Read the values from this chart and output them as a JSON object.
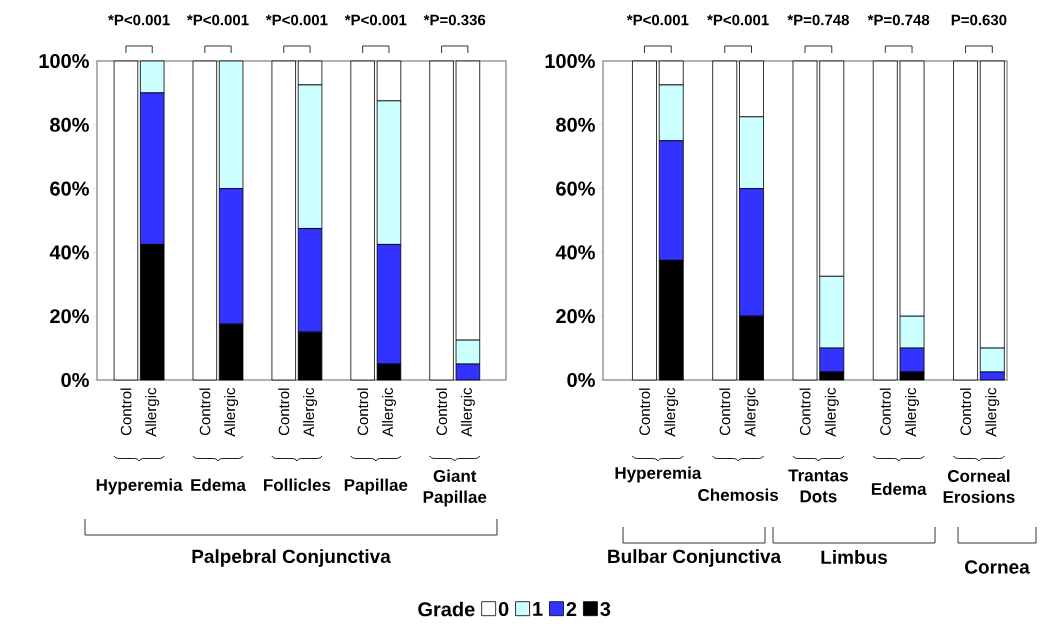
{
  "chart_data": [
    {
      "type": "bar",
      "stacked": true,
      "legend": "bottom",
      "legend_title": "Grade",
      "categories": [
        "Control",
        "Allergic",
        "Control",
        "Allergic",
        "Control",
        "Allergic",
        "Control",
        "Allergic",
        "Control",
        "Allergic"
      ],
      "ylim": [
        0,
        100
      ],
      "yticks": [
        {
          "value": 0,
          "label": "0%"
        },
        {
          "value": 20,
          "label": "20%"
        },
        {
          "value": 40,
          "label": "40%"
        },
        {
          "value": 60,
          "label": "60%"
        },
        {
          "value": 80,
          "label": "80%"
        },
        {
          "value": 100,
          "label": "100%"
        }
      ],
      "series": [
        {
          "name": "3",
          "color": "#000000",
          "values": [
            0,
            42.5,
            0,
            17.5,
            0,
            15,
            0,
            5,
            0,
            0
          ]
        },
        {
          "name": "2",
          "color": "#3333ff",
          "values": [
            0,
            47.5,
            0,
            42.5,
            0,
            32.5,
            0,
            37.5,
            0,
            5
          ]
        },
        {
          "name": "1",
          "color": "#ccffff",
          "values": [
            0,
            10,
            0,
            40,
            0,
            45,
            0,
            45,
            0,
            7.5
          ]
        },
        {
          "name": "0",
          "color": "#ffffff",
          "values": [
            100,
            0,
            100,
            0,
            100,
            7.5,
            100,
            12.5,
            100,
            87.5
          ]
        }
      ],
      "annotations": [
        "*P<0.001",
        "*P<0.001",
        "*P<0.001",
        "*P<0.001",
        "*P=0.336",
        "Hyperemia",
        "Edema",
        "Follicles",
        "Papillae",
        "Giant Papillae",
        "Palpebral Conjunctiva"
      ]
    },
    {
      "type": "bar",
      "stacked": true,
      "categories": [
        "Control",
        "Allergic",
        "Control",
        "Allergic",
        "Control",
        "Allergic",
        "Control",
        "Allergic",
        "Control",
        "Allergic"
      ],
      "ylim": [
        0,
        100
      ],
      "yticks": [
        {
          "value": 0,
          "label": "0%"
        },
        {
          "value": 20,
          "label": "20%"
        },
        {
          "value": 40,
          "label": "40%"
        },
        {
          "value": 60,
          "label": "60%"
        },
        {
          "value": 80,
          "label": "80%"
        },
        {
          "value": 100,
          "label": "100%"
        }
      ],
      "series": [
        {
          "color": "#000000",
          "values": [
            0,
            37.5,
            0,
            20,
            0,
            2.5,
            0,
            2.5,
            0,
            0
          ]
        },
        {
          "color": "#3333ff",
          "values": [
            0,
            37.5,
            0,
            40,
            0,
            7.5,
            0,
            7.5,
            0,
            2.5
          ]
        },
        {
          "color": "#ccffff",
          "values": [
            0,
            17.5,
            0,
            22.5,
            0,
            22.5,
            0,
            10,
            0,
            7.5
          ]
        },
        {
          "color": "#ffffff",
          "values": [
            100,
            7.5,
            100,
            17.5,
            100,
            67.5,
            100,
            80,
            100,
            90
          ]
        }
      ],
      "annotations": [
        "*P<0.001",
        "*P<0.001",
        "*P=0.748",
        "*P=0.748",
        "P=0.630",
        "Hyperemia",
        "Chemosis",
        "Trantas Dots",
        "Edema",
        "Corneal Erosions",
        "Bulbar Conjunctiva",
        "Limbus",
        "Cornea"
      ]
    }
  ]
}
